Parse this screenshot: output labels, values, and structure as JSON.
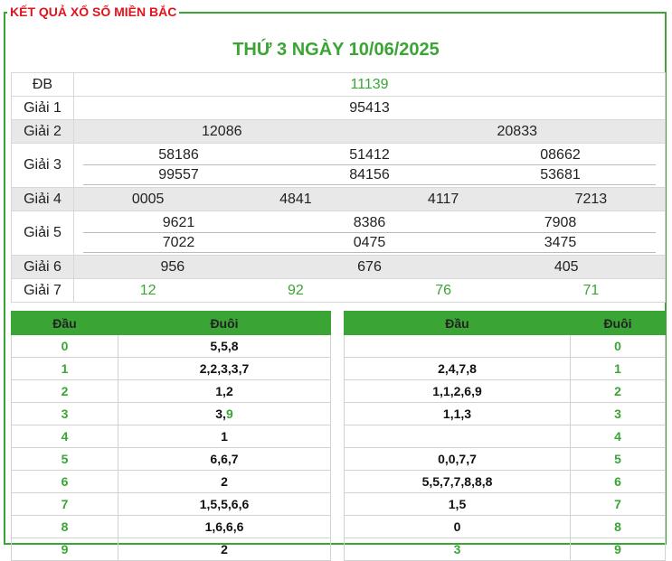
{
  "header": {
    "legend": "KẾT QUẢ XỔ SỐ MIỀN BẮC",
    "title": "THỨ 3 NGÀY 10/06/2025"
  },
  "results": {
    "db": {
      "label": "ĐB",
      "values": [
        "11139"
      ]
    },
    "g1": {
      "label": "Giải 1",
      "values": [
        "95413"
      ]
    },
    "g2": {
      "label": "Giải 2",
      "values": [
        "12086",
        "20833"
      ]
    },
    "g3": {
      "label": "Giải 3",
      "values": [
        "58186",
        "51412",
        "08662",
        "99557",
        "84156",
        "53681"
      ]
    },
    "g4": {
      "label": "Giải 4",
      "values": [
        "0005",
        "4841",
        "4117",
        "7213"
      ]
    },
    "g5": {
      "label": "Giải 5",
      "values": [
        "9621",
        "8386",
        "7908",
        "7022",
        "0475",
        "3475"
      ]
    },
    "g6": {
      "label": "Giải 6",
      "values": [
        "956",
        "676",
        "405"
      ]
    },
    "g7": {
      "label": "Giải 7",
      "values": [
        "12",
        "92",
        "76",
        "71"
      ]
    }
  },
  "loto_left": {
    "head": "Đầu",
    "tail": "Đuôi",
    "rows": [
      {
        "d": "0",
        "v": "5,5,8"
      },
      {
        "d": "1",
        "v": "2,2,3,3,7"
      },
      {
        "d": "2",
        "v": "1,2"
      },
      {
        "d": "3",
        "v": "3,",
        "v2": "9"
      },
      {
        "d": "4",
        "v": "1"
      },
      {
        "d": "5",
        "v": "6,6,7"
      },
      {
        "d": "6",
        "v": "2"
      },
      {
        "d": "7",
        "v": "1,5,5,6,6"
      },
      {
        "d": "8",
        "v": "1,6,6,6"
      },
      {
        "d": "9",
        "v": "2"
      }
    ]
  },
  "loto_right": {
    "head": "Đầu",
    "tail": "Đuôi",
    "rows": [
      {
        "v": "",
        "d": "0"
      },
      {
        "v": "2,4,7,8",
        "d": "1"
      },
      {
        "v": "1,1,2,6,9",
        "d": "2"
      },
      {
        "v": "1,1,3",
        "d": "3"
      },
      {
        "v": "",
        "d": "4"
      },
      {
        "v": "0,0,7,7",
        "d": "5"
      },
      {
        "v": "5,5,7,7,8,8,8",
        "d": "6"
      },
      {
        "v": "1,5",
        "d": "7"
      },
      {
        "v": "0",
        "d": "8"
      },
      {
        "v": "3",
        "d": "9"
      }
    ]
  }
}
